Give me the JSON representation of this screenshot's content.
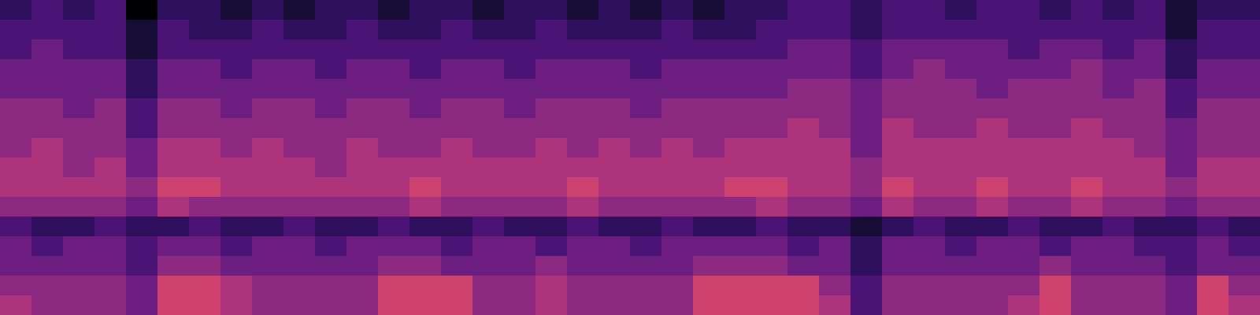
{
  "chart_data": {
    "type": "heatmap",
    "tick_labels": false,
    "zlim": [
      0,
      10
    ],
    "z": [
      [
        2,
        3,
        2,
        3,
        0,
        2,
        2,
        1,
        2,
        1,
        2,
        2,
        1,
        2,
        2,
        1,
        2,
        2,
        1,
        2,
        1,
        2,
        1,
        2,
        2,
        3,
        3,
        2,
        3,
        3,
        2,
        3,
        3,
        2,
        3,
        2,
        3,
        1,
        2,
        2
      ],
      [
        3,
        3,
        3,
        3,
        1,
        3,
        2,
        2,
        3,
        2,
        2,
        3,
        2,
        2,
        3,
        2,
        2,
        3,
        2,
        2,
        2,
        3,
        2,
        2,
        3,
        3,
        3,
        2,
        3,
        3,
        3,
        3,
        3,
        3,
        3,
        3,
        3,
        1,
        3,
        3
      ],
      [
        3,
        4,
        3,
        3,
        1,
        3,
        3,
        3,
        3,
        3,
        3,
        3,
        3,
        3,
        3,
        3,
        3,
        3,
        3,
        3,
        3,
        3,
        3,
        3,
        3,
        4,
        4,
        3,
        4,
        4,
        4,
        4,
        3,
        4,
        4,
        3,
        4,
        2,
        3,
        3
      ],
      [
        4,
        4,
        4,
        4,
        2,
        4,
        4,
        3,
        4,
        4,
        3,
        4,
        4,
        3,
        4,
        4,
        3,
        4,
        4,
        4,
        3,
        4,
        4,
        4,
        4,
        4,
        4,
        3,
        4,
        5,
        4,
        4,
        4,
        4,
        5,
        4,
        4,
        2,
        4,
        4
      ],
      [
        4,
        4,
        4,
        4,
        2,
        4,
        4,
        4,
        4,
        4,
        4,
        4,
        4,
        4,
        4,
        4,
        4,
        4,
        4,
        4,
        4,
        4,
        4,
        4,
        4,
        5,
        5,
        4,
        5,
        5,
        5,
        4,
        5,
        5,
        5,
        4,
        5,
        3,
        4,
        4
      ],
      [
        5,
        5,
        4,
        5,
        3,
        5,
        5,
        4,
        5,
        5,
        4,
        5,
        5,
        4,
        5,
        5,
        4,
        5,
        5,
        5,
        4,
        5,
        5,
        5,
        5,
        5,
        5,
        4,
        5,
        5,
        5,
        5,
        5,
        5,
        5,
        5,
        5,
        3,
        5,
        5
      ],
      [
        5,
        5,
        5,
        5,
        3,
        5,
        5,
        5,
        5,
        5,
        5,
        5,
        5,
        5,
        5,
        5,
        5,
        5,
        5,
        5,
        5,
        5,
        5,
        5,
        5,
        6,
        5,
        4,
        6,
        5,
        5,
        6,
        5,
        5,
        6,
        5,
        5,
        4,
        5,
        5
      ],
      [
        5,
        6,
        5,
        5,
        4,
        6,
        6,
        5,
        6,
        5,
        5,
        6,
        5,
        5,
        6,
        5,
        5,
        6,
        5,
        6,
        5,
        6,
        5,
        6,
        6,
        6,
        6,
        4,
        6,
        6,
        6,
        6,
        6,
        6,
        6,
        6,
        5,
        4,
        5,
        5
      ],
      [
        6,
        6,
        5,
        6,
        4,
        6,
        6,
        6,
        6,
        6,
        5,
        6,
        6,
        6,
        6,
        6,
        6,
        6,
        6,
        6,
        6,
        6,
        6,
        6,
        6,
        6,
        6,
        5,
        6,
        6,
        6,
        6,
        6,
        6,
        6,
        6,
        6,
        4,
        6,
        6
      ],
      [
        6,
        6,
        6,
        6,
        5,
        7,
        7,
        6,
        6,
        6,
        6,
        6,
        6,
        7,
        6,
        6,
        6,
        6,
        7,
        6,
        6,
        6,
        6,
        7,
        7,
        6,
        6,
        5,
        7,
        6,
        6,
        7,
        6,
        6,
        7,
        6,
        6,
        5,
        6,
        6
      ],
      [
        5,
        5,
        5,
        5,
        4,
        6,
        5,
        5,
        5,
        5,
        5,
        5,
        5,
        6,
        5,
        5,
        5,
        5,
        6,
        5,
        5,
        5,
        5,
        5,
        6,
        5,
        5,
        4,
        6,
        5,
        5,
        6,
        5,
        5,
        6,
        5,
        5,
        4,
        5,
        5
      ],
      [
        3,
        2,
        2,
        3,
        2,
        2,
        3,
        2,
        2,
        3,
        2,
        2,
        3,
        2,
        2,
        3,
        2,
        2,
        3,
        2,
        2,
        3,
        2,
        2,
        3,
        2,
        2,
        1,
        2,
        3,
        2,
        2,
        3,
        2,
        2,
        3,
        2,
        2,
        3,
        2
      ],
      [
        4,
        3,
        4,
        4,
        3,
        4,
        4,
        3,
        4,
        4,
        3,
        4,
        4,
        4,
        3,
        4,
        4,
        3,
        4,
        4,
        3,
        4,
        4,
        4,
        4,
        3,
        4,
        2,
        4,
        4,
        3,
        4,
        4,
        3,
        4,
        4,
        3,
        3,
        4,
        3
      ],
      [
        4,
        4,
        4,
        4,
        3,
        5,
        5,
        4,
        4,
        4,
        4,
        4,
        5,
        5,
        4,
        4,
        4,
        5,
        4,
        4,
        4,
        4,
        5,
        5,
        5,
        4,
        4,
        2,
        4,
        4,
        4,
        4,
        4,
        5,
        4,
        4,
        4,
        3,
        4,
        4
      ],
      [
        5,
        5,
        5,
        5,
        4,
        7,
        7,
        6,
        5,
        5,
        5,
        5,
        7,
        7,
        7,
        5,
        5,
        6,
        5,
        5,
        5,
        5,
        7,
        7,
        7,
        7,
        5,
        3,
        5,
        5,
        5,
        5,
        5,
        7,
        5,
        5,
        5,
        4,
        7,
        5
      ],
      [
        6,
        5,
        5,
        5,
        4,
        7,
        7,
        6,
        5,
        5,
        5,
        5,
        7,
        7,
        7,
        5,
        5,
        6,
        5,
        5,
        5,
        5,
        7,
        7,
        7,
        7,
        6,
        3,
        5,
        5,
        5,
        5,
        6,
        7,
        5,
        5,
        5,
        4,
        7,
        6
      ]
    ]
  }
}
